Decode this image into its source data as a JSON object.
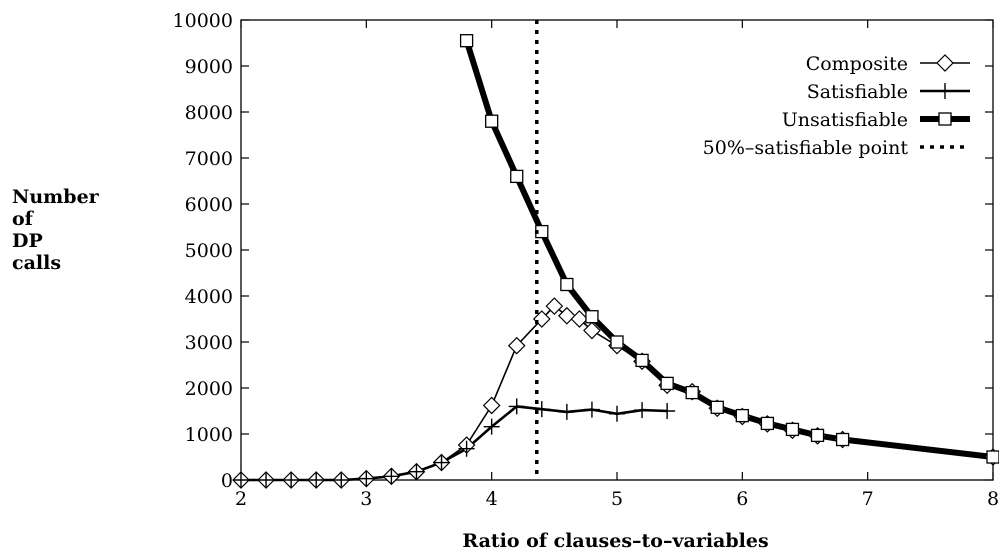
{
  "chart_data": {
    "type": "line",
    "ylabel_lines": [
      "Number",
      "of",
      "DP",
      "calls"
    ],
    "xlabel": "Ratio of clauses–to–variables",
    "xlim": [
      2,
      8
    ],
    "ylim": [
      0,
      10000
    ],
    "xticks": [
      2,
      3,
      4,
      5,
      6,
      7,
      8
    ],
    "yticks": [
      0,
      1000,
      2000,
      3000,
      4000,
      5000,
      6000,
      7000,
      8000,
      9000,
      10000
    ],
    "legend_position": "top-right",
    "vline_x": 4.36,
    "series": [
      {
        "name": "Composite",
        "marker": "diamond",
        "x": [
          2.0,
          2.2,
          2.4,
          2.6,
          2.8,
          3.0,
          3.2,
          3.4,
          3.6,
          3.8,
          4.0,
          4.2,
          4.4,
          4.5,
          4.6,
          4.7,
          4.8,
          5.0,
          5.2,
          5.4,
          5.6,
          5.8,
          6.0,
          6.2,
          6.4,
          6.6,
          6.8,
          8.0
        ],
        "y": [
          0,
          0,
          0,
          0,
          0,
          30,
          80,
          180,
          380,
          760,
          1620,
          2920,
          3500,
          3780,
          3570,
          3500,
          3250,
          2920,
          2580,
          2060,
          1920,
          1560,
          1380,
          1220,
          1080,
          960,
          880,
          500
        ]
      },
      {
        "name": "Satisfiable",
        "marker": "plus",
        "x": [
          2.0,
          2.2,
          2.4,
          2.6,
          2.8,
          3.0,
          3.2,
          3.4,
          3.6,
          3.8,
          4.0,
          4.2,
          4.4,
          4.6,
          4.8,
          5.0,
          5.2,
          5.4
        ],
        "y": [
          0,
          0,
          0,
          0,
          0,
          30,
          80,
          180,
          380,
          680,
          1160,
          1600,
          1540,
          1480,
          1530,
          1440,
          1520,
          1500
        ]
      },
      {
        "name": "Unsatisfiable",
        "marker": "square",
        "x": [
          3.8,
          4.0,
          4.2,
          4.4,
          4.6,
          4.8,
          5.0,
          5.2,
          5.4,
          5.6,
          5.8,
          6.0,
          6.2,
          6.4,
          6.6,
          6.8,
          8.0
        ],
        "y": [
          9550,
          7800,
          6600,
          5400,
          4250,
          3550,
          3000,
          2600,
          2100,
          1900,
          1580,
          1400,
          1230,
          1100,
          970,
          880,
          500
        ]
      },
      {
        "name": "50%–satisfiable point",
        "marker": "none"
      }
    ]
  }
}
